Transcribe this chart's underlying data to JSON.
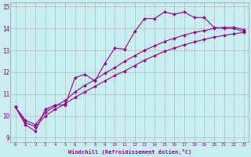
{
  "xlabel": "Windchill (Refroidissement éolien,°C)",
  "xlim": [
    -0.5,
    23.5
  ],
  "ylim": [
    8.8,
    15.2
  ],
  "xticks": [
    0,
    1,
    2,
    3,
    4,
    5,
    6,
    7,
    8,
    9,
    10,
    11,
    12,
    13,
    14,
    15,
    16,
    17,
    18,
    19,
    20,
    21,
    22,
    23
  ],
  "yticks": [
    9,
    10,
    11,
    12,
    13,
    14,
    15
  ],
  "background_color": "#c8eef0",
  "grid_color": "#b0b0b0",
  "line_color": "#990099",
  "lines": [
    {
      "x": [
        0,
        1,
        2,
        3,
        4,
        5,
        6,
        7,
        8,
        9,
        10,
        11,
        12,
        13,
        14,
        15,
        16,
        17,
        18,
        19,
        20,
        21,
        22,
        23
      ],
      "y": [
        10.4,
        9.6,
        9.3,
        10.3,
        10.5,
        10.5,
        11.75,
        11.9,
        11.6,
        12.4,
        13.1,
        13.05,
        13.85,
        14.45,
        14.45,
        14.75,
        14.65,
        14.75,
        14.5,
        14.5,
        14.05,
        14.0,
        14.0,
        13.85
      ],
      "marker": true
    },
    {
      "x": [
        0,
        1,
        2,
        3,
        4,
        5,
        6,
        7,
        8,
        9,
        10,
        11,
        12,
        13,
        14,
        15,
        16,
        17,
        18,
        19,
        20,
        21,
        22,
        23
      ],
      "y": [
        10.4,
        9.7,
        9.5,
        10.0,
        10.3,
        10.55,
        10.85,
        11.1,
        11.35,
        11.6,
        11.85,
        12.05,
        12.3,
        12.55,
        12.75,
        12.95,
        13.1,
        13.25,
        13.38,
        13.5,
        13.6,
        13.68,
        13.75,
        13.82
      ],
      "marker": true
    },
    {
      "x": [
        0,
        1,
        2,
        3,
        4,
        5,
        6,
        7,
        8,
        9,
        10,
        11,
        12,
        13,
        14,
        15,
        16,
        17,
        18,
        19,
        20,
        21,
        22,
        23
      ],
      "y": [
        10.4,
        9.8,
        9.6,
        10.15,
        10.45,
        10.7,
        11.1,
        11.4,
        11.65,
        11.95,
        12.2,
        12.5,
        12.75,
        13.0,
        13.2,
        13.4,
        13.55,
        13.7,
        13.82,
        13.9,
        14.0,
        14.05,
        14.05,
        13.95
      ],
      "marker": true
    }
  ]
}
